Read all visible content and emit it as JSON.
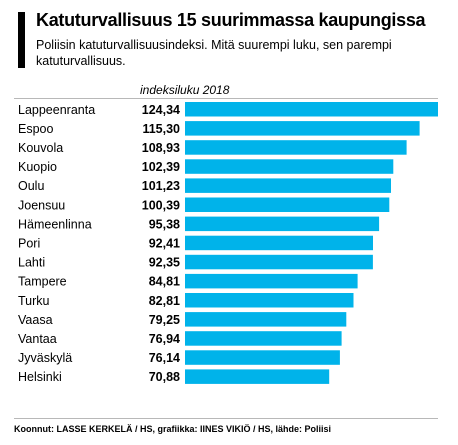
{
  "header": {
    "title": "Katuturvallisuus 15 suurimmassa kaupungissa",
    "subtitle": "Poliisin katuturvallisuusindeksi. Mitä suurempi luku, sen parempi katuturvallisuus."
  },
  "column_header": "indeksiluku 2018",
  "footer": "Koonnut: LASSE KERKELÄ / HS, grafiikka: IINES VIKIÖ / HS, lähde: Poliisi",
  "colors": {
    "bar": "#00b3ea",
    "accent": "#000000"
  },
  "chart_data": {
    "type": "bar",
    "orientation": "horizontal",
    "title": "Katuturvallisuus 15 suurimmassa kaupungissa",
    "subtitle": "Poliisin katuturvallisuusindeksi. Mitä suurempi luku, sen parempi katuturvallisuus.",
    "value_header": "indeksiluku 2018",
    "categories": [
      "Lappeenranta",
      "Espoo",
      "Kouvola",
      "Kuopio",
      "Oulu",
      "Joensuu",
      "Hämeenlinna",
      "Pori",
      "Lahti",
      "Tampere",
      "Turku",
      "Vaasa",
      "Vantaa",
      "Jyväskylä",
      "Helsinki"
    ],
    "values": [
      124.34,
      115.3,
      108.93,
      102.39,
      101.23,
      100.39,
      95.38,
      92.41,
      92.35,
      84.81,
      82.81,
      79.25,
      76.94,
      76.14,
      70.88
    ],
    "labels": [
      "124,34",
      "115,30",
      "108,93",
      "102,39",
      "101,23",
      "100,39",
      "95,38",
      "92,41",
      "92,35",
      "84,81",
      "82,81",
      "79,25",
      "76,94",
      "76,14",
      "70,88"
    ],
    "grid": false,
    "legend": "none"
  }
}
